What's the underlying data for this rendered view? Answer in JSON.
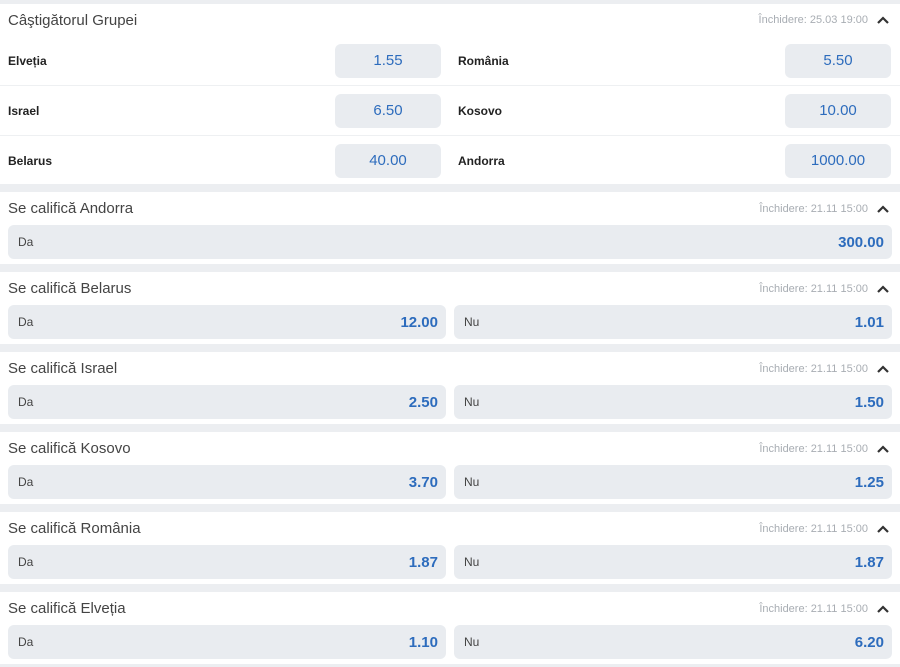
{
  "winner": {
    "title": "Câştigătorul Grupei",
    "closing": "Închidere: 25.03 19:00",
    "rows": [
      [
        {
          "team": "Elveția",
          "odd": "1.55"
        },
        {
          "team": "România",
          "odd": "5.50"
        }
      ],
      [
        {
          "team": "Israel",
          "odd": "6.50"
        },
        {
          "team": "Kosovo",
          "odd": "10.00"
        }
      ],
      [
        {
          "team": "Belarus",
          "odd": "40.00"
        },
        {
          "team": "Andorra",
          "odd": "1000.00"
        }
      ]
    ]
  },
  "markets": [
    {
      "title": "Se califică Andorra",
      "closing": "Închidere: 21.11 15:00",
      "options": [
        {
          "label": "Da",
          "odd": "300.00"
        }
      ]
    },
    {
      "title": "Se califică Belarus",
      "closing": "Închidere: 21.11 15:00",
      "options": [
        {
          "label": "Da",
          "odd": "12.00"
        },
        {
          "label": "Nu",
          "odd": "1.01"
        }
      ]
    },
    {
      "title": "Se califică Israel",
      "closing": "Închidere: 21.11 15:00",
      "options": [
        {
          "label": "Da",
          "odd": "2.50"
        },
        {
          "label": "Nu",
          "odd": "1.50"
        }
      ]
    },
    {
      "title": "Se califică Kosovo",
      "closing": "Închidere: 21.11 15:00",
      "options": [
        {
          "label": "Da",
          "odd": "3.70"
        },
        {
          "label": "Nu",
          "odd": "1.25"
        }
      ]
    },
    {
      "title": "Se califică România",
      "closing": "Închidere: 21.11 15:00",
      "options": [
        {
          "label": "Da",
          "odd": "1.87"
        },
        {
          "label": "Nu",
          "odd": "1.87"
        }
      ]
    },
    {
      "title": "Se califică Elveția",
      "closing": "Închidere: 21.11 15:00",
      "options": [
        {
          "label": "Da",
          "odd": "1.10"
        },
        {
          "label": "Nu",
          "odd": "6.20"
        }
      ]
    }
  ],
  "colors": {
    "odd": "#2d6cbd",
    "button_bg": "#e9ecf0"
  },
  "icons": {
    "collapse": "chevron-up-icon"
  }
}
